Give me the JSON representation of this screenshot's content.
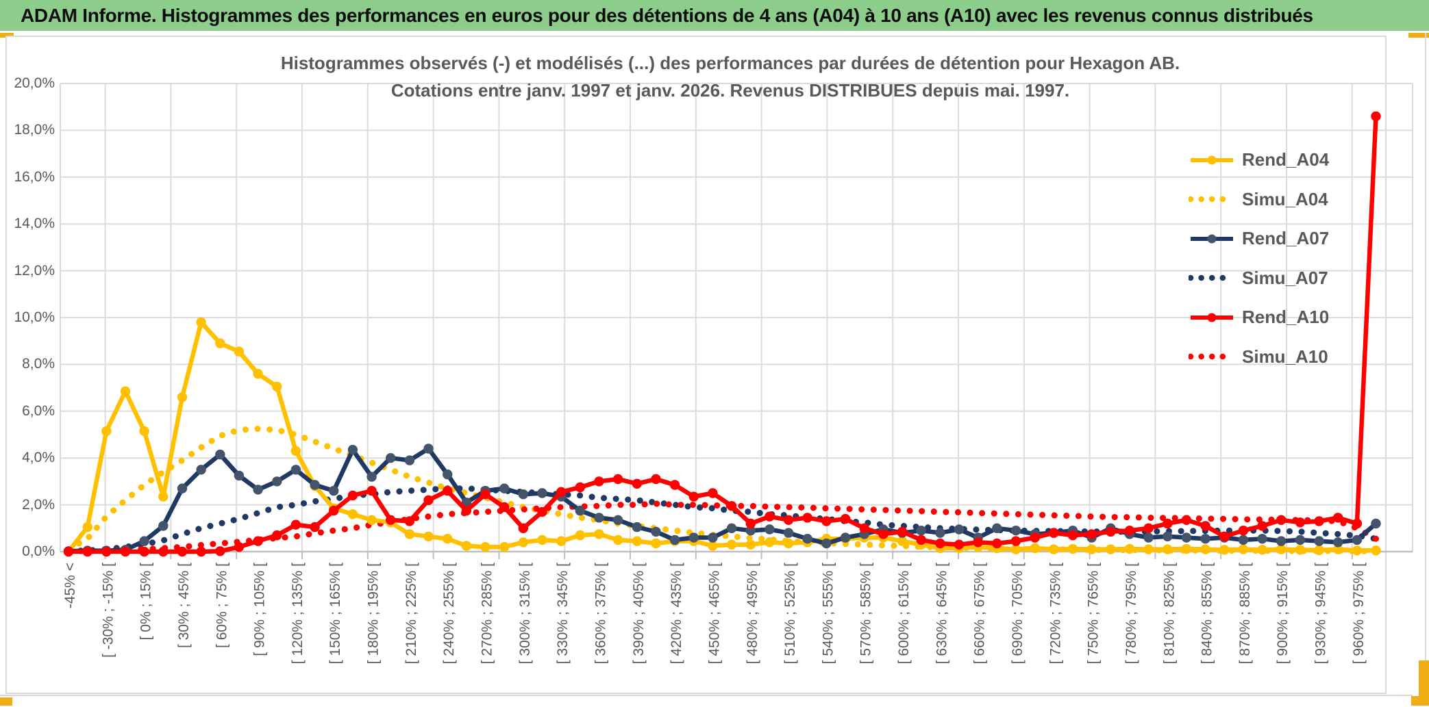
{
  "banner": {
    "title": "ADAM Informe. Histogrammes des performances en euros pour des détentions de 4 ans (A04) à 10 ans (A10) avec les revenus connus distribués",
    "background_color": "#8CCD8C",
    "accent_color": "#EFAF14"
  },
  "chart": {
    "title_line1": "Histogrammes observés (-) et modélisés (...) des performances par durées de détention pour Hexagon AB.",
    "title_line2": "Cotations entre janv. 1997 et janv. 2026. Revenus DISTRIBUES depuis mai. 1997."
  },
  "chart_data": {
    "type": "line",
    "title": "Histogrammes observés (-) et modélisés (...) des performances par durées de détention pour Hexagon AB. Cotations entre janv. 1997 et janv. 2026. Revenus DISTRIBUES depuis mai. 1997.",
    "grid": true,
    "legend_position": "right-top",
    "y_axis": {
      "unit": "%",
      "min": 0,
      "max": 20,
      "step": 2,
      "tick_labels": [
        "20,0%",
        "18,0%",
        "16,0%",
        "14,0%",
        "12,0%",
        "10,0%",
        "8,0%",
        "6,0%",
        "4,0%",
        "2,0%",
        "0,0%"
      ]
    },
    "x_axis": {
      "n_points": 70,
      "labeled_every": 2,
      "tick_labels": [
        "-45% <",
        "[ -30% ; -15% [",
        "[ 0% ; 15% [",
        "[ 30% ; 45% [",
        "[ 60% ; 75% [",
        "[ 90% ; 105% [",
        "[ 120% ; 135% [",
        "[ 150% ; 165% [",
        "[ 180% ; 195% [",
        "[ 210% ; 225% [",
        "[ 240% ; 255% [",
        "[ 270% ; 285% [",
        "[ 300% ; 315% [",
        "[ 330% ; 345% [",
        "[ 360% ; 375% [",
        "[ 390% ; 405% [",
        "[ 420% ; 435% [",
        "[ 450% ; 465% [",
        "[ 480% ; 495% [",
        "[ 510% ; 525% [",
        "[ 540% ; 555% [",
        "[ 570% ; 585% [",
        "[ 600% ; 615% [",
        "[ 630% ; 645% [",
        "[ 660% ; 675% [",
        "[ 690% ; 705% [",
        "[ 720% ; 735% [",
        "[ 750% ; 765% [",
        "[ 780% ; 795% [",
        "[ 810% ; 825% [",
        "[ 840% ; 855% [",
        "[ 870% ; 885% [",
        "[ 900% ; 915% [",
        "[ 930% ; 945% [",
        "[ 960% ; 975% ["
      ]
    },
    "series": [
      {
        "name": "Rend_A04",
        "style": "solid",
        "color": "#FFC000",
        "marker_color": "#FFC000",
        "values": [
          0.0,
          1.05,
          5.15,
          6.85,
          5.15,
          2.35,
          6.6,
          9.8,
          8.9,
          8.55,
          7.6,
          7.05,
          4.3,
          2.8,
          1.85,
          1.6,
          1.35,
          1.25,
          0.75,
          0.65,
          0.55,
          0.25,
          0.2,
          0.2,
          0.4,
          0.5,
          0.45,
          0.7,
          0.75,
          0.5,
          0.45,
          0.35,
          0.45,
          0.45,
          0.25,
          0.3,
          0.3,
          0.4,
          0.35,
          0.4,
          0.55,
          0.55,
          0.6,
          0.6,
          0.45,
          0.3,
          0.15,
          0.15,
          0.2,
          0.15,
          0.1,
          0.15,
          0.1,
          0.12,
          0.1,
          0.1,
          0.12,
          0.1,
          0.1,
          0.12,
          0.1,
          0.08,
          0.1,
          0.08,
          0.1,
          0.08,
          0.06,
          0.1,
          0.05,
          0.05
        ]
      },
      {
        "name": "Simu_A04",
        "style": "dotted",
        "color": "#FFC000",
        "marker_color": "#FFC000",
        "values": [
          0.1,
          0.55,
          1.5,
          2.2,
          2.85,
          3.4,
          3.9,
          4.45,
          4.95,
          5.2,
          5.25,
          5.2,
          5.0,
          4.7,
          4.4,
          4.1,
          3.8,
          3.5,
          3.2,
          2.95,
          2.7,
          2.5,
          2.3,
          2.1,
          1.9,
          1.75,
          1.6,
          1.45,
          1.35,
          1.2,
          1.1,
          1.0,
          0.9,
          0.8,
          0.72,
          0.65,
          0.58,
          0.52,
          0.46,
          0.41,
          0.37,
          0.33,
          0.3,
          0.27,
          0.24,
          0.21,
          0.19,
          0.17,
          0.15,
          0.13,
          0.12,
          0.11,
          0.1,
          0.09,
          0.08,
          0.07,
          0.07,
          0.06,
          0.06,
          0.05,
          0.05,
          0.04,
          0.04,
          0.04,
          0.03,
          0.03,
          0.03,
          0.03,
          0.02,
          0.02
        ]
      },
      {
        "name": "Rend_A07",
        "style": "solid",
        "color": "#1F3864",
        "marker_color": "#44546A",
        "values": [
          0.02,
          0.04,
          0.04,
          0.08,
          0.45,
          1.1,
          2.7,
          3.5,
          4.15,
          3.25,
          2.65,
          3.0,
          3.5,
          2.85,
          2.6,
          4.35,
          3.2,
          4.0,
          3.9,
          4.4,
          3.3,
          2.1,
          2.6,
          2.7,
          2.45,
          2.5,
          2.35,
          1.75,
          1.45,
          1.35,
          1.05,
          0.85,
          0.5,
          0.6,
          0.6,
          1.0,
          0.9,
          0.95,
          0.8,
          0.55,
          0.35,
          0.6,
          0.75,
          0.95,
          0.8,
          0.9,
          0.8,
          0.95,
          0.6,
          1.0,
          0.9,
          0.75,
          0.8,
          0.9,
          0.6,
          1.0,
          0.75,
          0.6,
          0.65,
          0.6,
          0.55,
          0.6,
          0.5,
          0.55,
          0.45,
          0.5,
          0.45,
          0.4,
          0.5,
          1.2
        ]
      },
      {
        "name": "Simu_A07",
        "style": "dotted",
        "color": "#1F3864",
        "marker_color": "#1F3864",
        "values": [
          0.02,
          0.05,
          0.1,
          0.2,
          0.32,
          0.48,
          0.75,
          1.0,
          1.2,
          1.4,
          1.65,
          1.9,
          2.0,
          2.15,
          2.25,
          2.4,
          2.45,
          2.55,
          2.6,
          2.65,
          2.7,
          2.7,
          2.65,
          2.6,
          2.55,
          2.5,
          2.45,
          2.4,
          2.3,
          2.25,
          2.2,
          2.1,
          2.0,
          1.9,
          1.85,
          1.75,
          1.7,
          1.6,
          1.55,
          1.45,
          1.4,
          1.3,
          1.25,
          1.15,
          1.1,
          1.05,
          1.0,
          0.97,
          0.94,
          0.92,
          0.9,
          0.89,
          0.88,
          0.87,
          0.86,
          0.85,
          0.85,
          0.86,
          0.87,
          0.88,
          0.89,
          0.9,
          0.9,
          0.9,
          0.88,
          0.85,
          0.8,
          0.75,
          0.68,
          0.55
        ]
      },
      {
        "name": "Rend_A10",
        "style": "solid",
        "color": "#FF0000",
        "marker_color": "#FF0000",
        "values": [
          0.0,
          0.0,
          0.0,
          0.0,
          0.0,
          0.0,
          0.0,
          0.0,
          0.02,
          0.2,
          0.45,
          0.7,
          1.15,
          1.05,
          1.75,
          2.4,
          2.6,
          1.35,
          1.3,
          2.2,
          2.6,
          1.75,
          2.45,
          1.9,
          1.0,
          1.7,
          2.55,
          2.75,
          3.0,
          3.1,
          2.9,
          3.1,
          2.85,
          2.35,
          2.5,
          1.95,
          1.2,
          1.5,
          1.35,
          1.45,
          1.3,
          1.4,
          1.0,
          0.75,
          0.85,
          0.5,
          0.35,
          0.3,
          0.4,
          0.35,
          0.45,
          0.6,
          0.8,
          0.7,
          0.75,
          0.85,
          0.9,
          1.0,
          1.2,
          1.35,
          1.1,
          0.65,
          0.9,
          1.1,
          1.35,
          1.25,
          1.3,
          1.45,
          1.2,
          18.6
        ]
      },
      {
        "name": "Simu_A10",
        "style": "dotted",
        "color": "#FF0000",
        "marker_color": "#FF0000",
        "values": [
          0.02,
          0.03,
          0.05,
          0.07,
          0.1,
          0.15,
          0.2,
          0.28,
          0.35,
          0.42,
          0.5,
          0.58,
          0.65,
          0.78,
          0.9,
          1.0,
          1.15,
          1.25,
          1.4,
          1.5,
          1.6,
          1.65,
          1.7,
          1.75,
          1.8,
          1.85,
          1.9,
          1.93,
          1.95,
          2.0,
          2.0,
          2.05,
          2.0,
          2.0,
          1.98,
          1.95,
          1.95,
          1.92,
          1.9,
          1.88,
          1.85,
          1.83,
          1.8,
          1.78,
          1.75,
          1.73,
          1.7,
          1.68,
          1.65,
          1.63,
          1.6,
          1.58,
          1.55,
          1.53,
          1.5,
          1.48,
          1.47,
          1.45,
          1.44,
          1.43,
          1.41,
          1.4,
          1.38,
          1.37,
          1.36,
          1.35,
          1.33,
          1.3,
          1.0,
          0.55
        ]
      }
    ]
  }
}
